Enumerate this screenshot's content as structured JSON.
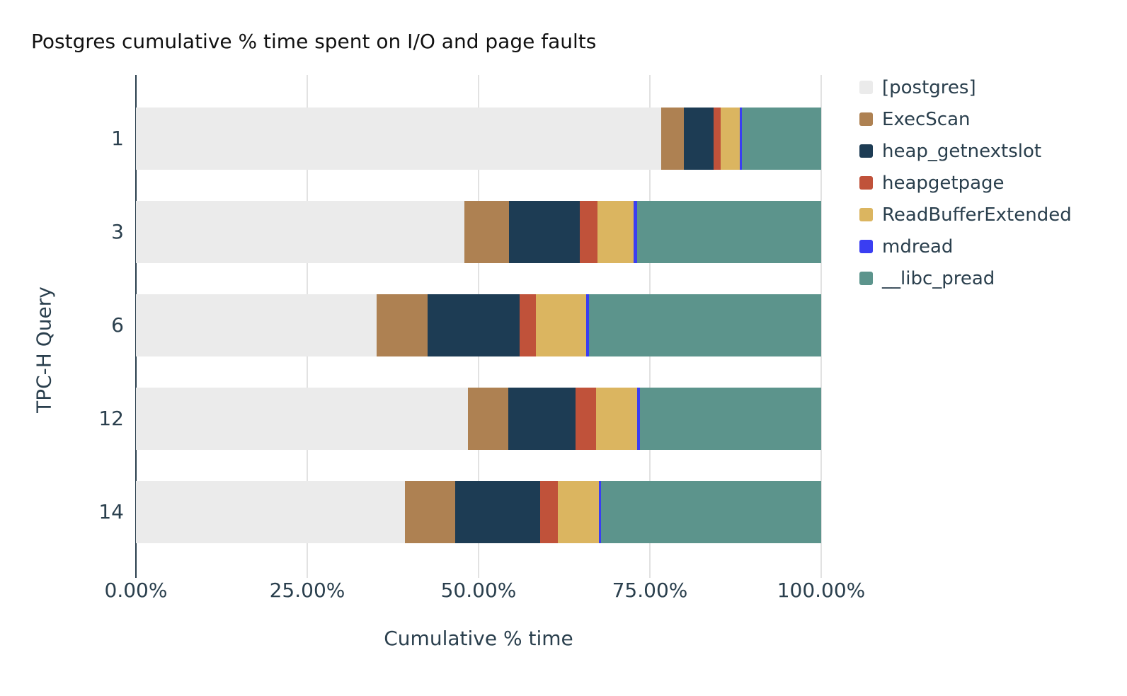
{
  "chart_data": {
    "type": "bar",
    "orientation": "horizontal",
    "stacked": true,
    "title": "Postgres cumulative % time spent on I/O and page faults",
    "xlabel": "Cumulative % time",
    "ylabel": "TPC-H Query",
    "categories": [
      "1",
      "3",
      "6",
      "12",
      "14"
    ],
    "xlim": [
      0,
      100
    ],
    "x_tick_values": [
      0,
      25,
      50,
      75,
      100
    ],
    "x_tick_labels": [
      "0.00%",
      "25.00%",
      "50.00%",
      "75.00%",
      "100.00%"
    ],
    "grid": true,
    "legend_position": "right",
    "series": [
      {
        "name": "[postgres]",
        "color": "#ebebeb",
        "values": [
          76.7,
          47.9,
          35.1,
          48.4,
          39.3
        ]
      },
      {
        "name": "ExecScan",
        "color": "#ae8152",
        "values": [
          3.3,
          6.5,
          7.5,
          5.9,
          7.3
        ]
      },
      {
        "name": "heap_getnextslot",
        "color": "#1d3c54",
        "values": [
          4.3,
          10.4,
          13.4,
          9.9,
          12.4
        ]
      },
      {
        "name": "heapgetpage",
        "color": "#c0523a",
        "values": [
          1.0,
          2.6,
          2.4,
          2.9,
          2.6
        ]
      },
      {
        "name": "ReadBufferExtended",
        "color": "#dbb560",
        "values": [
          2.8,
          5.2,
          7.3,
          6.0,
          6.0
        ]
      },
      {
        "name": "mdread",
        "color": "#3a3ef2",
        "values": [
          0.3,
          0.5,
          0.4,
          0.5,
          0.3
        ]
      },
      {
        "name": "__libc_pread",
        "color": "#5c948c",
        "values": [
          11.6,
          26.9,
          33.9,
          26.4,
          32.1
        ]
      }
    ],
    "colors": {
      "axis_text": "#2a3f4d",
      "title_text": "#111111",
      "gridline": "#e2e2e2",
      "axis_line": "#2a3f4d",
      "background": "#ffffff"
    }
  }
}
